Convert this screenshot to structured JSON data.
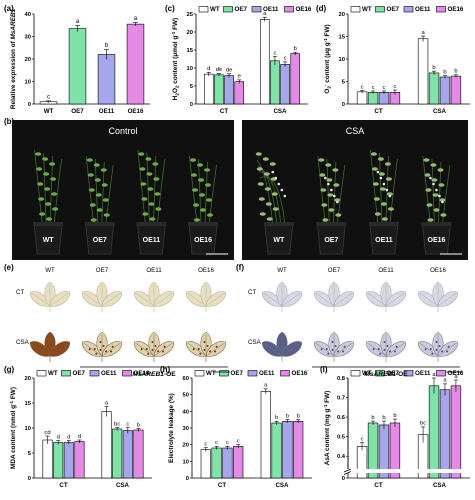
{
  "colors": {
    "WT": "#ffffff",
    "OE7": "#7fe3a8",
    "OE11": "#a6a6ec",
    "OE16": "#e48ae6",
    "axis": "#000000",
    "photo_bg": "#101010",
    "leaf_ct": "#e7dfc2",
    "leaf_csa": "#8b4a1c",
    "leaf_nbt": "#c9cbd8"
  },
  "legend": [
    "WT",
    "OE7",
    "OE11",
    "OE16"
  ],
  "panel_labels": [
    "(a)",
    "(b)",
    "(c)",
    "(d)",
    "(e)",
    "(f)",
    "(g)",
    "(h)",
    "(i)"
  ],
  "photo_b": {
    "left_title": "Control",
    "right_title": "CSA",
    "pot_labels": [
      "WT",
      "OE7",
      "OE11",
      "OE16"
    ]
  },
  "photo_e": {
    "col_labels": [
      "WT",
      "OE7",
      "OE11",
      "OE16"
    ],
    "row_labels": [
      "CT",
      "CSA"
    ],
    "caption": "MsAREB1-OE"
  },
  "photo_f": {
    "col_labels": [
      "WT",
      "OE7",
      "OE11",
      "OE16"
    ],
    "row_labels": [
      "CT",
      "CSA"
    ],
    "caption": "MsAREB1-OE"
  },
  "chart_data": [
    {
      "id": "a",
      "type": "bar",
      "ylabel": "Relative expression of MsAREB1",
      "categories": [
        "WT",
        "OE7",
        "OE11",
        "OE16"
      ],
      "values": [
        1,
        33.5,
        22,
        35.5
      ],
      "errors": [
        0.4,
        1.4,
        2.2,
        0.8
      ],
      "letters": [
        "c",
        "a",
        "b",
        "a"
      ],
      "ylim": [
        0,
        40
      ],
      "yticks": [
        0,
        10,
        20,
        30,
        40
      ]
    },
    {
      "id": "c",
      "type": "bar",
      "ylabel": "H2O2 content (μmol g-1 FW)",
      "groups": [
        "CT",
        "CSA"
      ],
      "series": [
        {
          "name": "WT",
          "values": [
            8.3,
            23.5
          ],
          "errors": [
            0.5,
            0.6
          ]
        },
        {
          "name": "OE7",
          "values": [
            8.1,
            12
          ],
          "errors": [
            0.4,
            1.2
          ]
        },
        {
          "name": "OE11",
          "values": [
            7.9,
            11
          ],
          "errors": [
            0.5,
            0.7
          ]
        },
        {
          "name": "OE16",
          "values": [
            6.2,
            14
          ],
          "errors": [
            0.5,
            0.4
          ]
        }
      ],
      "letters": [
        [
          "d",
          "de",
          "de",
          "e"
        ],
        [
          "a",
          "c",
          "c",
          "b"
        ]
      ],
      "ylim": [
        0,
        25
      ],
      "yticks": [
        0,
        5,
        10,
        15,
        20,
        25
      ]
    },
    {
      "id": "d",
      "type": "bar",
      "ylabel": "O2- content (μg g-1 FW)",
      "groups": [
        "CT",
        "CSA"
      ],
      "series": [
        {
          "name": "WT",
          "values": [
            2.7,
            14.5
          ],
          "errors": [
            0.3,
            0.6
          ]
        },
        {
          "name": "OE7",
          "values": [
            2.6,
            6.9
          ],
          "errors": [
            0.3,
            0.4
          ]
        },
        {
          "name": "OE11",
          "values": [
            2.6,
            6.0
          ],
          "errors": [
            0.3,
            0.3
          ]
        },
        {
          "name": "OE16",
          "values": [
            2.6,
            6.2
          ],
          "errors": [
            0.5,
            0.3
          ]
        }
      ],
      "letters": [
        [
          "c",
          "c",
          "c",
          "c"
        ],
        [
          "a",
          "b",
          "b",
          "b"
        ]
      ],
      "ylim": [
        0,
        20
      ],
      "yticks": [
        0,
        5,
        10,
        15,
        20
      ]
    },
    {
      "id": "g",
      "type": "bar",
      "ylabel": "MDA content (nmol g-1 FW)",
      "groups": [
        "CT",
        "CSA"
      ],
      "series": [
        {
          "name": "WT",
          "values": [
            7.6,
            13.3
          ],
          "errors": [
            0.8,
            1.0
          ]
        },
        {
          "name": "OE7",
          "values": [
            7.1,
            9.8
          ],
          "errors": [
            0.4,
            0.3
          ]
        },
        {
          "name": "OE11",
          "values": [
            7.1,
            9.5
          ],
          "errors": [
            0.4,
            0.6
          ]
        },
        {
          "name": "OE16",
          "values": [
            7.3,
            9.6
          ],
          "errors": [
            0.3,
            0.3
          ]
        }
      ],
      "letters": [
        [
          "cd",
          "d",
          "d",
          "d"
        ],
        [
          "a",
          "bc",
          "c",
          "b"
        ]
      ],
      "ylim": [
        0,
        20
      ],
      "yticks": [
        0,
        5,
        10,
        15,
        20
      ]
    },
    {
      "id": "h",
      "type": "bar",
      "ylabel": "Electrolyte leakage (%)",
      "groups": [
        "CT",
        "CSA"
      ],
      "series": [
        {
          "name": "WT",
          "values": [
            17,
            52
          ],
          "errors": [
            1.2,
            1.5
          ]
        },
        {
          "name": "OE7",
          "values": [
            18,
            33
          ],
          "errors": [
            1.0,
            1.0
          ]
        },
        {
          "name": "OE11",
          "values": [
            18,
            34
          ],
          "errors": [
            1.0,
            1.0
          ]
        },
        {
          "name": "OE16",
          "values": [
            19,
            34
          ],
          "errors": [
            1.0,
            1.0
          ]
        }
      ],
      "letters": [
        [
          "c",
          "c",
          "c",
          "c"
        ],
        [
          "a",
          "b",
          "b",
          "b"
        ]
      ],
      "ylim": [
        0,
        60
      ],
      "yticks": [
        0,
        10,
        20,
        30,
        40,
        50,
        60
      ]
    },
    {
      "id": "i",
      "type": "bar",
      "ylabel": "AsA content (mg g-1 FW)",
      "groups": [
        "CT",
        "CSA"
      ],
      "series": [
        {
          "name": "WT",
          "values": [
            0.45,
            0.51
          ],
          "errors": [
            0.02,
            0.04
          ]
        },
        {
          "name": "OE7",
          "values": [
            0.57,
            0.76
          ],
          "errors": [
            0.01,
            0.04
          ]
        },
        {
          "name": "OE11",
          "values": [
            0.56,
            0.74
          ],
          "errors": [
            0.02,
            0.03
          ]
        },
        {
          "name": "OE16",
          "values": [
            0.57,
            0.76
          ],
          "errors": [
            0.02,
            0.03
          ]
        }
      ],
      "letters": [
        [
          "c",
          "b",
          "b",
          "b"
        ],
        [
          "bc",
          "a",
          "a",
          "a"
        ]
      ],
      "ylim": [
        0.35,
        0.8
      ],
      "yticks": [
        0,
        0.4,
        0.5,
        0.6,
        0.7,
        0.8
      ],
      "axis_break": true
    }
  ]
}
